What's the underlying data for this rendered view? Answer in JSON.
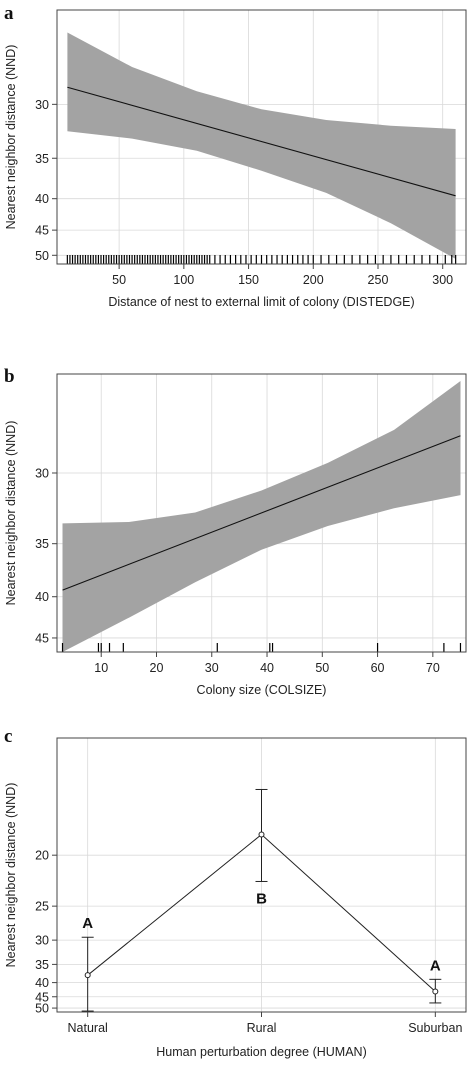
{
  "chart_data": [
    {
      "panel_label": "a",
      "type": "line",
      "ylabel": "Nearest neighbor distance (NND)",
      "xlabel": "Distance of nest to external limit of colony (DISTEDGE)",
      "xlim": [
        2,
        318
      ],
      "ylim": [
        52,
        24
      ],
      "y_scale": "reciprocal",
      "x_ticks": [
        50,
        100,
        150,
        200,
        250,
        300
      ],
      "y_ticks": [
        30,
        35,
        40,
        45,
        50
      ],
      "grid": true,
      "fit": {
        "x": [
          10,
          310
        ],
        "y": [
          28.7,
          39.6
        ]
      },
      "ci_band": {
        "x": [
          10,
          60,
          110,
          160,
          210,
          260,
          310
        ],
        "lower": [
          25.2,
          27.3,
          29.0,
          30.4,
          31.3,
          31.8,
          32.1
        ],
        "upper": [
          32.3,
          33.0,
          34.2,
          36.4,
          39.2,
          43.8,
          50.8
        ]
      },
      "rug": [
        10,
        12,
        14,
        16,
        18,
        20,
        22,
        24,
        26,
        28,
        30,
        32,
        34,
        36,
        38,
        40,
        42,
        44,
        46,
        48,
        50,
        52,
        54,
        56,
        58,
        60,
        62,
        64,
        66,
        68,
        70,
        72,
        74,
        76,
        78,
        80,
        82,
        84,
        86,
        88,
        90,
        92,
        94,
        96,
        98,
        100,
        102,
        104,
        106,
        108,
        110,
        112,
        114,
        116,
        118,
        120,
        124,
        128,
        132,
        136,
        140,
        144,
        148,
        152,
        156,
        160,
        164,
        168,
        172,
        176,
        180,
        184,
        188,
        192,
        196,
        200,
        206,
        212,
        218,
        224,
        230,
        236,
        242,
        248,
        254,
        260,
        266,
        272,
        278,
        284,
        290,
        296,
        302,
        307,
        310
      ]
    },
    {
      "panel_label": "b",
      "type": "line",
      "ylabel": "Nearest neighbor distance (NND)",
      "xlabel": "Colony size (COLSIZE)",
      "xlim": [
        2,
        76
      ],
      "ylim": [
        47,
        25
      ],
      "y_scale": "reciprocal",
      "x_ticks": [
        10,
        20,
        30,
        40,
        50,
        60,
        70
      ],
      "y_ticks": [
        30,
        35,
        40,
        45
      ],
      "grid": true,
      "fit": {
        "x": [
          3,
          75
        ],
        "y": [
          39.3,
          27.9
        ]
      },
      "ci_band": {
        "x": [
          3,
          15,
          27,
          39,
          51,
          63,
          75
        ],
        "lower": [
          33.4,
          33.3,
          32.6,
          31.1,
          29.4,
          27.6,
          25.3
        ],
        "upper": [
          47.0,
          42.4,
          38.5,
          35.5,
          33.6,
          32.3,
          31.4
        ]
      },
      "rug": [
        3,
        9.5,
        10,
        11.5,
        14,
        31,
        40.5,
        41,
        60,
        72,
        75
      ]
    },
    {
      "panel_label": "c",
      "type": "line",
      "ylabel": "Nearest neighbor distance (NND)",
      "xlabel": "Human perturbation degree (HUMAN)",
      "categories": [
        "Natural",
        "Rural",
        "Suburban"
      ],
      "y_scale": "reciprocal",
      "ylim": [
        52,
        13.7
      ],
      "y_ticks": [
        20,
        25,
        30,
        35,
        40,
        45,
        50
      ],
      "grid": true,
      "points": [
        {
          "category": "Natural",
          "estimate": 37.8,
          "ci_low": 29.5,
          "ci_high": 51.5,
          "group": "A"
        },
        {
          "category": "Rural",
          "estimate": 18.5,
          "ci_low": 15.9,
          "ci_high": 22.3,
          "group": "B"
        },
        {
          "category": "Suburban",
          "estimate": 43.0,
          "ci_low": 39.0,
          "ci_high": 47.6,
          "group": "A"
        }
      ]
    }
  ]
}
